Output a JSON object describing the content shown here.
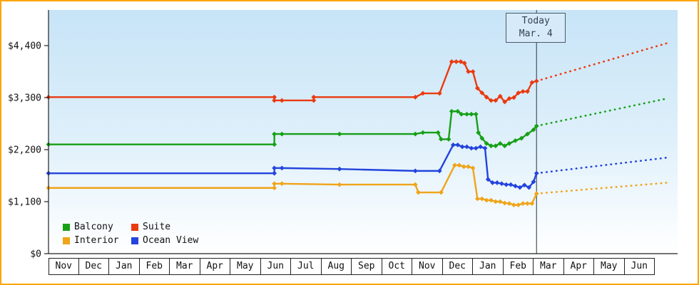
{
  "frame": {
    "border_color": "#ffa400"
  },
  "chart_data": {
    "type": "line",
    "title": "",
    "grid": false,
    "legend_position": "bottom-left",
    "ylim": [
      0,
      4700
    ],
    "x_months": [
      "Nov",
      "Dec",
      "Jan",
      "Feb",
      "Mar",
      "Apr",
      "May",
      "Jun",
      "Jul",
      "Aug",
      "Sep",
      "Oct",
      "Nov",
      "Dec",
      "Jan",
      "Feb",
      "Mar",
      "Apr",
      "May",
      "Jun"
    ],
    "y_ticks": [
      {
        "label": "$4,400",
        "value": 4400
      },
      {
        "label": "$3,300",
        "value": 3300
      },
      {
        "label": "$2,200",
        "value": 2200
      },
      {
        "label": "$1,100",
        "value": 1100
      },
      {
        "label": "$0",
        "value": 0
      }
    ],
    "today": {
      "date_line1": "Today",
      "date_line2": "Mar. 4",
      "x_month": 16.1
    },
    "series": [
      {
        "name": "Balcony",
        "color": "#16a016",
        "points": [
          [
            0,
            2310
          ],
          [
            7.45,
            2310
          ],
          [
            7.45,
            2530
          ],
          [
            7.7,
            2530
          ],
          [
            9.6,
            2530
          ],
          [
            12.1,
            2530
          ],
          [
            12.35,
            2560
          ],
          [
            12.85,
            2560
          ],
          [
            12.95,
            2420
          ],
          [
            13.2,
            2420
          ],
          [
            13.3,
            3010
          ],
          [
            13.5,
            3010
          ],
          [
            13.62,
            2950
          ],
          [
            13.8,
            2950
          ],
          [
            13.95,
            2950
          ],
          [
            14.1,
            2950
          ],
          [
            14.18,
            2560
          ],
          [
            14.3,
            2440
          ],
          [
            14.45,
            2330
          ],
          [
            14.6,
            2280
          ],
          [
            14.75,
            2280
          ],
          [
            14.9,
            2330
          ],
          [
            15.05,
            2280
          ],
          [
            15.2,
            2330
          ],
          [
            15.4,
            2390
          ],
          [
            15.6,
            2440
          ],
          [
            15.8,
            2530
          ],
          [
            16.0,
            2620
          ],
          [
            16.1,
            2700
          ]
        ],
        "forecast": [
          [
            16.1,
            2700
          ],
          [
            20.4,
            3280
          ]
        ]
      },
      {
        "name": "Suite",
        "color": "#ea3a10",
        "points": [
          [
            0,
            3310
          ],
          [
            7.45,
            3310
          ],
          [
            7.45,
            3240
          ],
          [
            7.7,
            3240
          ],
          [
            8.75,
            3240
          ],
          [
            8.75,
            3310
          ],
          [
            12.1,
            3310
          ],
          [
            12.35,
            3390
          ],
          [
            12.9,
            3390
          ],
          [
            13.3,
            4060
          ],
          [
            13.45,
            4060
          ],
          [
            13.6,
            4060
          ],
          [
            13.72,
            4030
          ],
          [
            13.85,
            3850
          ],
          [
            14.0,
            3850
          ],
          [
            14.15,
            3500
          ],
          [
            14.3,
            3400
          ],
          [
            14.45,
            3310
          ],
          [
            14.6,
            3240
          ],
          [
            14.75,
            3240
          ],
          [
            14.9,
            3330
          ],
          [
            15.05,
            3210
          ],
          [
            15.2,
            3280
          ],
          [
            15.35,
            3300
          ],
          [
            15.5,
            3400
          ],
          [
            15.65,
            3430
          ],
          [
            15.8,
            3430
          ],
          [
            15.95,
            3620
          ],
          [
            16.1,
            3650
          ]
        ],
        "forecast": [
          [
            16.1,
            3650
          ],
          [
            20.4,
            4450
          ]
        ]
      },
      {
        "name": "Interior",
        "color": "#f0a418",
        "points": [
          [
            0,
            1390
          ],
          [
            7.45,
            1390
          ],
          [
            7.45,
            1480
          ],
          [
            7.7,
            1480
          ],
          [
            9.6,
            1460
          ],
          [
            12.1,
            1460
          ],
          [
            12.2,
            1295
          ],
          [
            12.95,
            1295
          ],
          [
            13.4,
            1870
          ],
          [
            13.55,
            1870
          ],
          [
            13.7,
            1840
          ],
          [
            13.85,
            1840
          ],
          [
            14.0,
            1810
          ],
          [
            14.15,
            1160
          ],
          [
            14.3,
            1160
          ],
          [
            14.45,
            1130
          ],
          [
            14.6,
            1130
          ],
          [
            14.75,
            1100
          ],
          [
            14.9,
            1100
          ],
          [
            15.05,
            1070
          ],
          [
            15.2,
            1060
          ],
          [
            15.35,
            1030
          ],
          [
            15.5,
            1030
          ],
          [
            15.65,
            1060
          ],
          [
            15.8,
            1060
          ],
          [
            15.95,
            1060
          ],
          [
            16.1,
            1270
          ]
        ],
        "forecast": [
          [
            16.1,
            1270
          ],
          [
            20.4,
            1500
          ]
        ]
      },
      {
        "name": "Ocean View",
        "color": "#2344dd",
        "points": [
          [
            0,
            1700
          ],
          [
            7.45,
            1700
          ],
          [
            7.45,
            1810
          ],
          [
            7.7,
            1810
          ],
          [
            9.6,
            1790
          ],
          [
            12.1,
            1750
          ],
          [
            12.9,
            1750
          ],
          [
            13.35,
            2300
          ],
          [
            13.5,
            2300
          ],
          [
            13.65,
            2260
          ],
          [
            13.8,
            2260
          ],
          [
            13.95,
            2230
          ],
          [
            14.1,
            2230
          ],
          [
            14.25,
            2260
          ],
          [
            14.4,
            2230
          ],
          [
            14.5,
            1570
          ],
          [
            14.65,
            1500
          ],
          [
            14.8,
            1500
          ],
          [
            14.95,
            1480
          ],
          [
            15.1,
            1460
          ],
          [
            15.25,
            1460
          ],
          [
            15.4,
            1430
          ],
          [
            15.55,
            1400
          ],
          [
            15.7,
            1450
          ],
          [
            15.85,
            1400
          ],
          [
            16.0,
            1520
          ],
          [
            16.1,
            1700
          ]
        ],
        "forecast": [
          [
            16.1,
            1700
          ],
          [
            20.4,
            2030
          ]
        ]
      }
    ]
  }
}
